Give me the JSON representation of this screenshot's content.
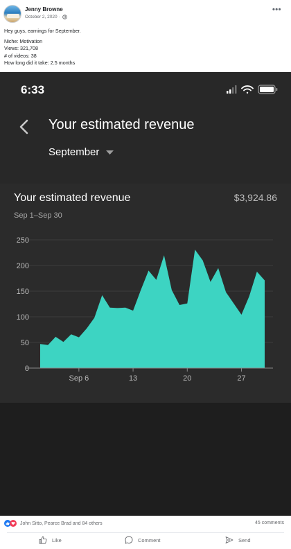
{
  "post": {
    "author": "Jenny Browne",
    "date": "October 2, 2020 · ",
    "more_icon": "more-dots-icon",
    "lines": [
      "Hey guys, earnings for September.",
      "Niche: Motivation",
      "Views: 321,708",
      "# of videos: 38",
      "How long did it take: 2.5 months"
    ]
  },
  "screenshot": {
    "time": "6:33",
    "title": "Your estimated revenue",
    "month": "September",
    "card_title": "Your estimated revenue",
    "amount": "$3,924.86",
    "range": "Sep 1–Sep 30"
  },
  "chart_data": {
    "type": "area",
    "x": [
      1,
      2,
      3,
      4,
      5,
      6,
      7,
      8,
      9,
      10,
      11,
      12,
      13,
      14,
      15,
      16,
      17,
      18,
      19,
      20,
      21,
      22,
      23,
      24,
      25,
      26,
      27,
      28,
      29,
      30
    ],
    "values": [
      47,
      45,
      61,
      51,
      66,
      60,
      77,
      98,
      142,
      118,
      117,
      118,
      112,
      152,
      190,
      172,
      220,
      152,
      123,
      126,
      231,
      210,
      168,
      195,
      148,
      126,
      104,
      140,
      188,
      171
    ],
    "ylim": [
      0,
      250
    ],
    "y_ticks": [
      250,
      200,
      150,
      100,
      50,
      0
    ],
    "x_ticks": [
      {
        "day": 6,
        "label": "Sep 6"
      },
      {
        "day": 13,
        "label": "13"
      },
      {
        "day": 20,
        "label": "20"
      },
      {
        "day": 27,
        "label": "27"
      }
    ],
    "fill_color": "#3dd4c2",
    "grid": true
  },
  "footer": {
    "reaction_names": "John Sitto, Pearce Brad and 84 others",
    "comments": "45 comments",
    "like": "Like",
    "comment": "Comment",
    "send": "Send"
  }
}
